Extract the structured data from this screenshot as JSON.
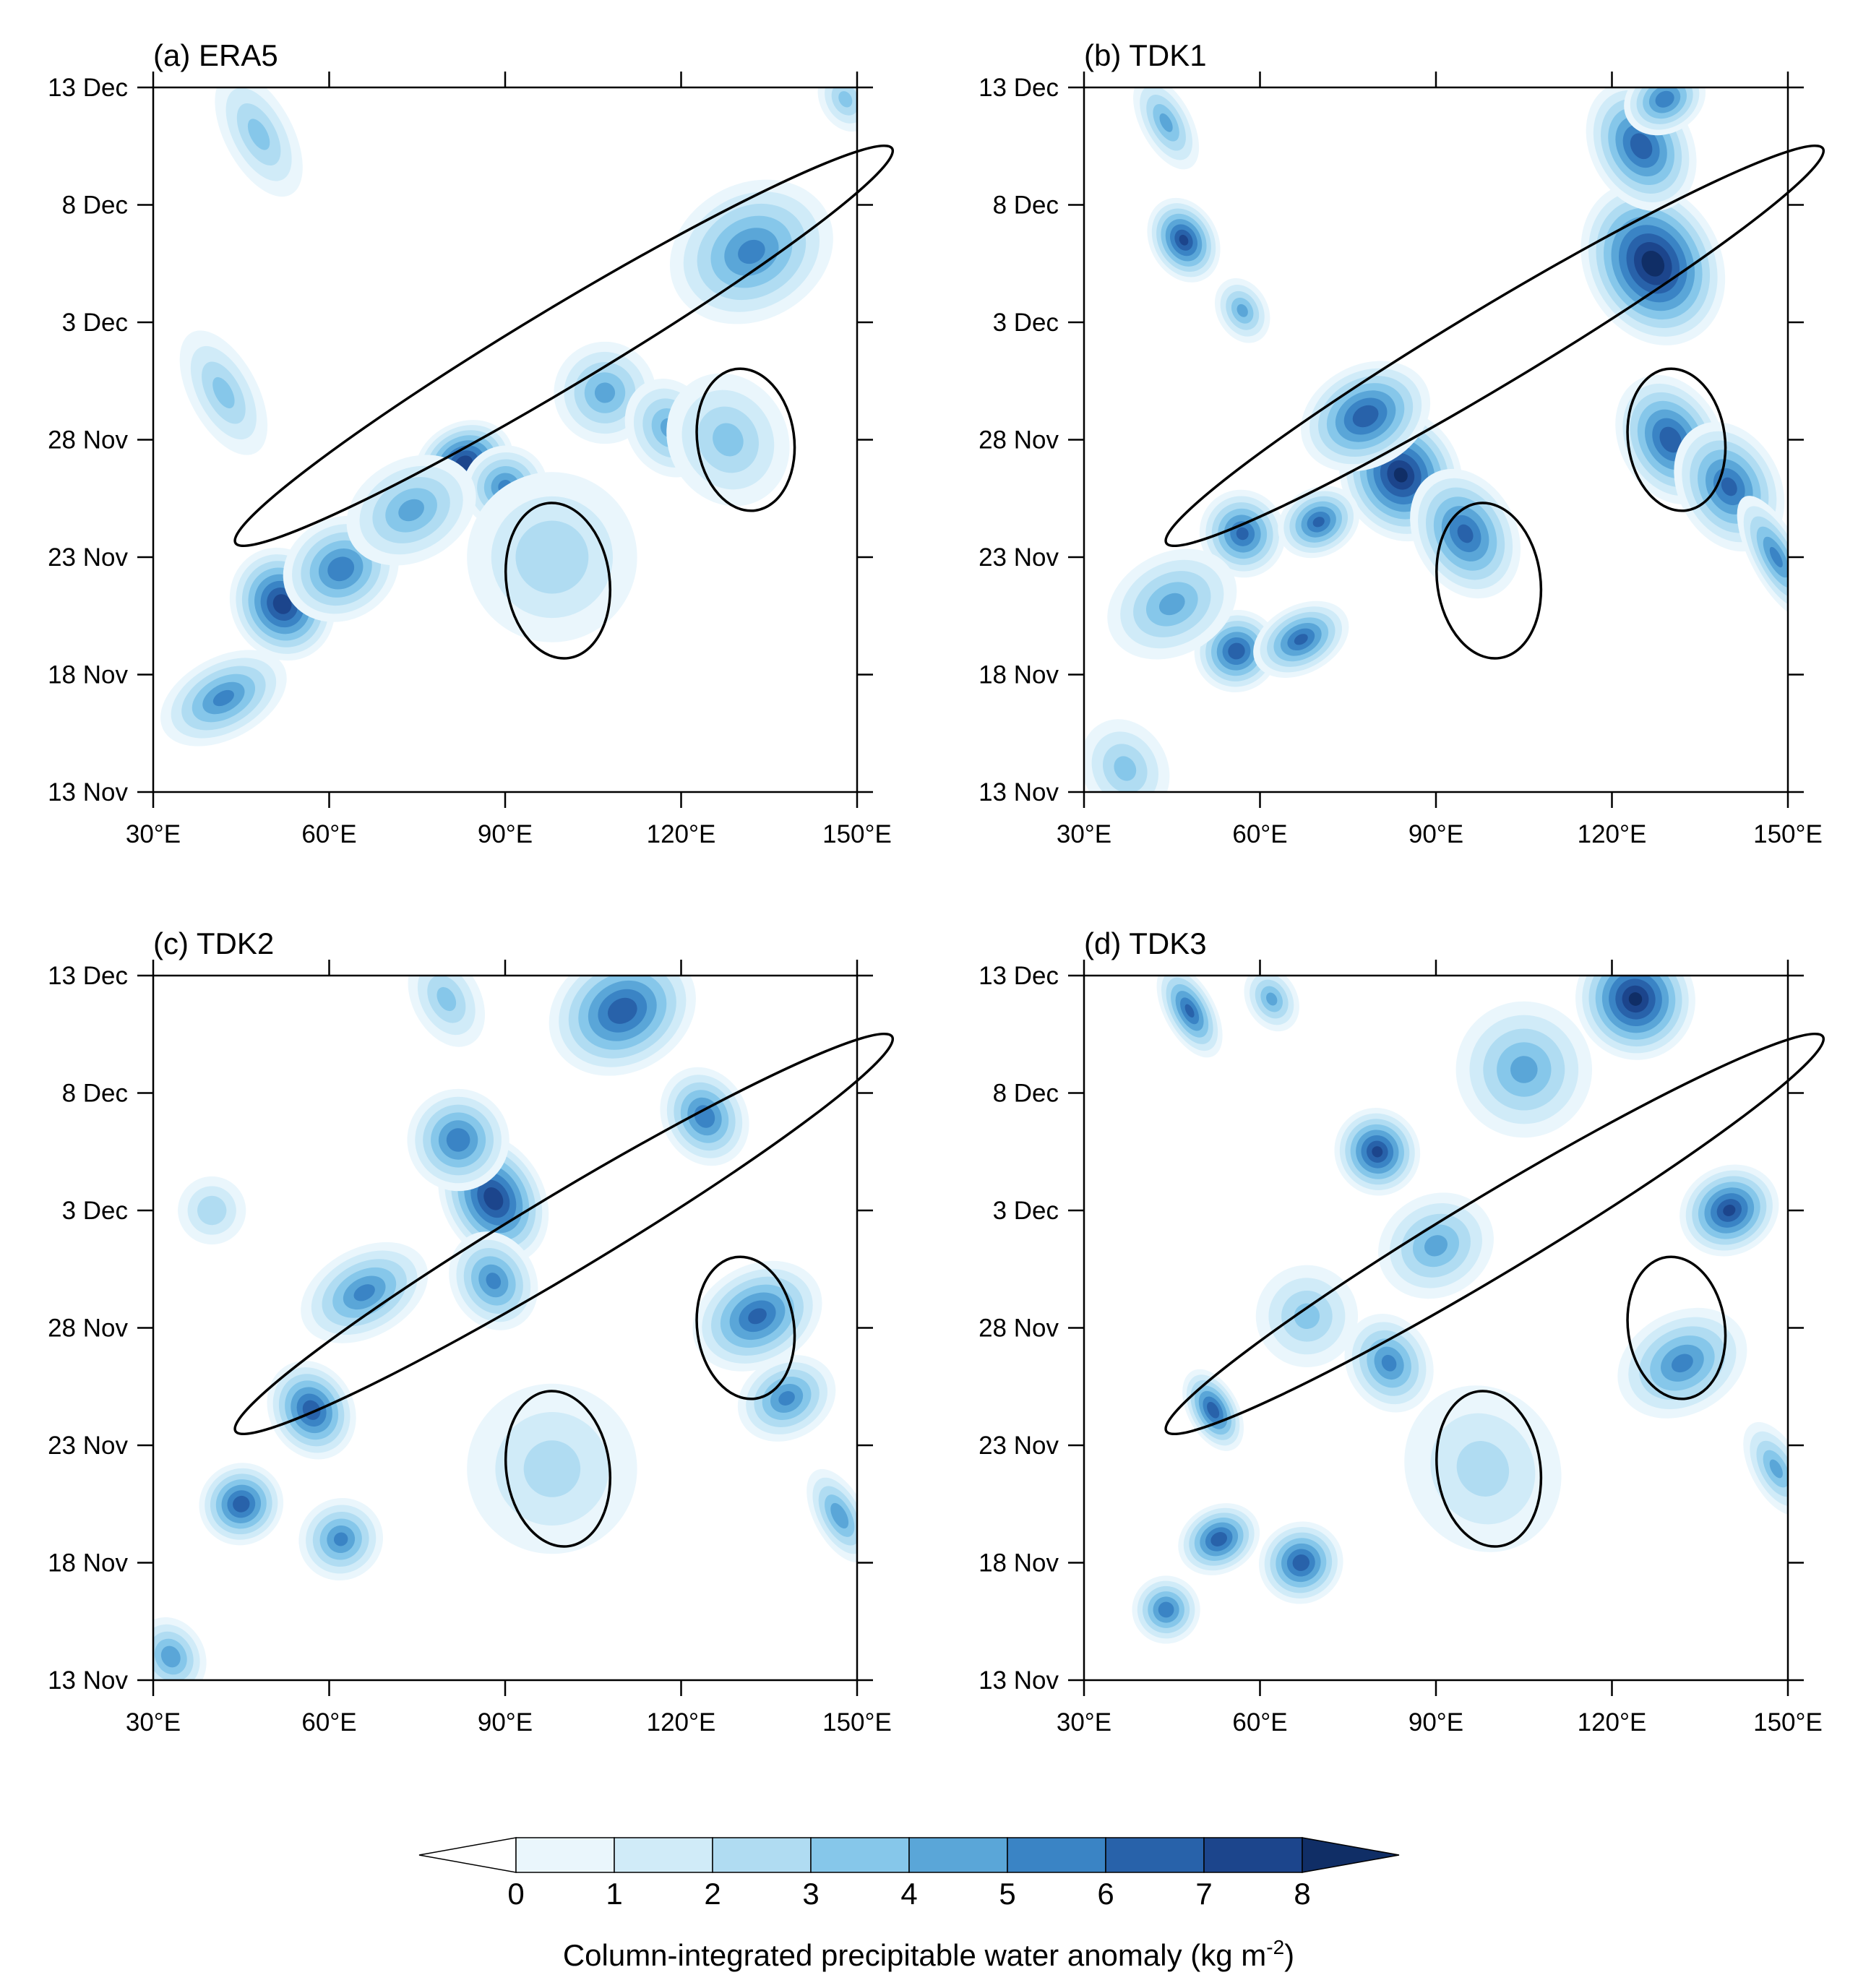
{
  "chart_data": [
    {
      "type": "heatmap",
      "title": "(a) ERA5",
      "x_ticks": [
        "30°E",
        "60°E",
        "90°E",
        "120°E",
        "150°E"
      ],
      "y_ticks": [
        "13 Nov",
        "18 Nov",
        "23 Nov",
        "28 Nov",
        "3 Dec",
        "8 Dec",
        "13 Dec"
      ],
      "xlim": [
        30,
        150
      ],
      "ylim": [
        "13 Nov",
        "13 Dec"
      ],
      "ellipses": [
        {
          "center_lon": 100,
          "center_date": "2 Dec",
          "semi_major_lon": 51,
          "semi_minor_days": 1.3,
          "tilt_deg": -31
        },
        {
          "center_lon": 99,
          "center_date": "22 Nov",
          "semi_major_lon": 16,
          "semi_minor_days": 3.5,
          "tilt_deg": -8
        },
        {
          "center_lon": 131,
          "center_date": "28 Nov",
          "semi_major_lon": 15,
          "semi_minor_days": 3.2,
          "tilt_deg": -8
        }
      ],
      "blobs": [
        {
          "lon": 52,
          "date": "21 Nov",
          "value": 7.5,
          "spread_lon": 6,
          "spread_days": 1.7
        },
        {
          "lon": 62,
          "date": "22.5 Nov",
          "value": 5.5,
          "spread_lon": 7,
          "spread_days": 1.5
        },
        {
          "lon": 42,
          "date": "17 Nov",
          "value": 5,
          "spread_lon": 8,
          "spread_days": 1.2
        },
        {
          "lon": 83,
          "date": "27 Nov",
          "value": 7.5,
          "spread_lon": 6,
          "spread_days": 1.2
        },
        {
          "lon": 90,
          "date": "26 Nov",
          "value": 5,
          "spread_lon": 5,
          "spread_days": 1.2
        },
        {
          "lon": 74,
          "date": "25 Nov",
          "value": 4,
          "spread_lon": 8,
          "spread_days": 1.5
        },
        {
          "lon": 107,
          "date": "30 Nov",
          "value": 4,
          "spread_lon": 6,
          "spread_days": 1.5
        },
        {
          "lon": 118,
          "date": "28.5 Nov",
          "value": 4,
          "spread_lon": 5,
          "spread_days": 1.5
        },
        {
          "lon": 132,
          "date": "6 Dec",
          "value": 5,
          "spread_lon": 10,
          "spread_days": 2
        },
        {
          "lon": 128,
          "date": "28 Nov",
          "value": 3,
          "spread_lon": 7,
          "spread_days": 2
        },
        {
          "lon": 98,
          "date": "23 Nov",
          "value": 2.5,
          "spread_lon": 10,
          "spread_days": 2.5
        },
        {
          "lon": 48,
          "date": "11 Dec",
          "value": 3,
          "spread_lon": 4,
          "spread_days": 2
        },
        {
          "lon": 42,
          "date": "30 Nov",
          "value": 3,
          "spread_lon": 4,
          "spread_days": 2
        },
        {
          "lon": 148,
          "date": "12.5 Dec",
          "value": 3,
          "spread_lon": 3,
          "spread_days": 1
        }
      ]
    },
    {
      "type": "heatmap",
      "title": "(b) TDK1",
      "x_ticks": [
        "30°E",
        "60°E",
        "90°E",
        "120°E",
        "150°E"
      ],
      "y_ticks": [
        "13 Nov",
        "18 Nov",
        "23 Nov",
        "28 Nov",
        "3 Dec",
        "8 Dec",
        "13 Dec"
      ],
      "xlim": [
        30,
        150
      ],
      "ylim": [
        "13 Nov",
        "13 Dec"
      ],
      "ellipses": [
        {
          "center_lon": 100,
          "center_date": "2 Dec",
          "semi_major_lon": 51,
          "semi_minor_days": 1.3,
          "tilt_deg": -31
        },
        {
          "center_lon": 99,
          "center_date": "22 Nov",
          "semi_major_lon": 16,
          "semi_minor_days": 3.5,
          "tilt_deg": -8
        },
        {
          "center_lon": 131,
          "center_date": "28 Nov",
          "semi_major_lon": 15,
          "semi_minor_days": 3.2,
          "tilt_deg": -8
        }
      ],
      "blobs": [
        {
          "lon": 84,
          "date": "26.5 Nov",
          "value": 8,
          "spread_lon": 7,
          "spread_days": 2
        },
        {
          "lon": 78,
          "date": "29 Nov",
          "value": 6.5,
          "spread_lon": 8,
          "spread_days": 1.5
        },
        {
          "lon": 57,
          "date": "24 Nov",
          "value": 6,
          "spread_lon": 5,
          "spread_days": 1.3
        },
        {
          "lon": 70,
          "date": "24.5 Nov",
          "value": 6,
          "spread_lon": 5,
          "spread_days": 1
        },
        {
          "lon": 95,
          "date": "24 Nov",
          "value": 6,
          "spread_lon": 6,
          "spread_days": 2
        },
        {
          "lon": 127,
          "date": "5.5 Dec",
          "value": 8.5,
          "spread_lon": 8,
          "spread_days": 2.5
        },
        {
          "lon": 125,
          "date": "10.5 Dec",
          "value": 6.5,
          "spread_lon": 6,
          "spread_days": 2
        },
        {
          "lon": 129,
          "date": "12.5 Dec",
          "value": 5.5,
          "spread_lon": 5,
          "spread_days": 1
        },
        {
          "lon": 130,
          "date": "28 Nov",
          "value": 6.5,
          "spread_lon": 6,
          "spread_days": 2
        },
        {
          "lon": 140,
          "date": "26 Nov",
          "value": 6,
          "spread_lon": 6,
          "spread_days": 2
        },
        {
          "lon": 47,
          "date": "6.5 Dec",
          "value": 7,
          "spread_lon": 4,
          "spread_days": 1.3
        },
        {
          "lon": 56,
          "date": "19 Nov",
          "value": 6.5,
          "spread_lon": 5,
          "spread_days": 1.2
        },
        {
          "lon": 67,
          "date": "19.5 Nov",
          "value": 6,
          "spread_lon": 6,
          "spread_days": 1
        },
        {
          "lon": 45,
          "date": "21 Nov",
          "value": 4,
          "spread_lon": 8,
          "spread_days": 1.5
        },
        {
          "lon": 148,
          "date": "23 Nov",
          "value": 5,
          "spread_lon": 3,
          "spread_days": 2
        },
        {
          "lon": 57,
          "date": "3.5 Dec",
          "value": 4,
          "spread_lon": 3,
          "spread_days": 1
        },
        {
          "lon": 37,
          "date": "14 Nov",
          "value": 3,
          "spread_lon": 5,
          "spread_days": 1.5
        },
        {
          "lon": 44,
          "date": "11.5 Dec",
          "value": 4,
          "spread_lon": 3,
          "spread_days": 1.5
        }
      ]
    },
    {
      "type": "heatmap",
      "title": "(c) TDK2",
      "x_ticks": [
        "30°E",
        "60°E",
        "90°E",
        "120°E",
        "150°E"
      ],
      "y_ticks": [
        "13 Nov",
        "18 Nov",
        "23 Nov",
        "28 Nov",
        "3 Dec",
        "8 Dec",
        "13 Dec"
      ],
      "xlim": [
        30,
        150
      ],
      "ylim": [
        "13 Nov",
        "13 Dec"
      ],
      "ellipses": [
        {
          "center_lon": 100,
          "center_date": "2 Dec",
          "semi_major_lon": 51,
          "semi_minor_days": 1.3,
          "tilt_deg": -31
        },
        {
          "center_lon": 99,
          "center_date": "22 Nov",
          "semi_major_lon": 16,
          "semi_minor_days": 3.5,
          "tilt_deg": -8
        },
        {
          "center_lon": 131,
          "center_date": "28 Nov",
          "semi_major_lon": 15,
          "semi_minor_days": 3.2,
          "tilt_deg": -8
        }
      ],
      "blobs": [
        {
          "lon": 88,
          "date": "3.5 Dec",
          "value": 7.5,
          "spread_lon": 6,
          "spread_days": 2
        },
        {
          "lon": 82,
          "date": "6 Dec",
          "value": 5.5,
          "spread_lon": 6,
          "spread_days": 1.5
        },
        {
          "lon": 88,
          "date": "30 Nov",
          "value": 5,
          "spread_lon": 5,
          "spread_days": 1.5
        },
        {
          "lon": 110,
          "date": "11.5 Dec",
          "value": 6.5,
          "spread_lon": 9,
          "spread_days": 1.8
        },
        {
          "lon": 124,
          "date": "7 Dec",
          "value": 5.5,
          "spread_lon": 5,
          "spread_days": 1.5
        },
        {
          "lon": 133,
          "date": "28.5 Nov",
          "value": 6,
          "spread_lon": 8,
          "spread_days": 1.5
        },
        {
          "lon": 138,
          "date": "25 Nov",
          "value": 5,
          "spread_lon": 6,
          "spread_days": 1.2
        },
        {
          "lon": 57,
          "date": "24.5 Nov",
          "value": 6.5,
          "spread_lon": 5,
          "spread_days": 1.5
        },
        {
          "lon": 66,
          "date": "29.5 Nov",
          "value": 5,
          "spread_lon": 8,
          "spread_days": 1.3
        },
        {
          "lon": 45,
          "date": "20.5 Nov",
          "value": 6.5,
          "spread_lon": 5,
          "spread_days": 1.2
        },
        {
          "lon": 62,
          "date": "19 Nov",
          "value": 5,
          "spread_lon": 5,
          "spread_days": 1.2
        },
        {
          "lon": 33,
          "date": "14 Nov",
          "value": 4.5,
          "spread_lon": 4,
          "spread_days": 1.2
        },
        {
          "lon": 98,
          "date": "22 Nov",
          "value": 2,
          "spread_lon": 10,
          "spread_days": 2.5
        },
        {
          "lon": 147,
          "date": "20 Nov",
          "value": 4.5,
          "spread_lon": 3,
          "spread_days": 1.5
        },
        {
          "lon": 80,
          "date": "12 Dec",
          "value": 3,
          "spread_lon": 4,
          "spread_days": 1.5
        },
        {
          "lon": 40,
          "date": "3 Dec",
          "value": 2.5,
          "spread_lon": 4,
          "spread_days": 1
        }
      ]
    },
    {
      "type": "heatmap",
      "title": "(d) TDK3",
      "x_ticks": [
        "30°E",
        "60°E",
        "90°E",
        "120°E",
        "150°E"
      ],
      "y_ticks": [
        "13 Nov",
        "18 Nov",
        "23 Nov",
        "28 Nov",
        "3 Dec",
        "8 Dec",
        "13 Dec"
      ],
      "xlim": [
        30,
        150
      ],
      "ylim": [
        "13 Nov",
        "13 Dec"
      ],
      "ellipses": [
        {
          "center_lon": 100,
          "center_date": "2 Dec",
          "semi_major_lon": 51,
          "semi_minor_days": 1.3,
          "tilt_deg": -31
        },
        {
          "center_lon": 99,
          "center_date": "22 Nov",
          "semi_major_lon": 16,
          "semi_minor_days": 3.5,
          "tilt_deg": -8
        },
        {
          "center_lon": 131,
          "center_date": "28 Nov",
          "semi_major_lon": 15,
          "semi_minor_days": 3.2,
          "tilt_deg": -8
        }
      ],
      "blobs": [
        {
          "lon": 124,
          "date": "12 Dec",
          "value": 8,
          "spread_lon": 7,
          "spread_days": 1.8
        },
        {
          "lon": 140,
          "date": "3 Dec",
          "value": 7,
          "spread_lon": 6,
          "spread_days": 1.3
        },
        {
          "lon": 80,
          "date": "5.5 Dec",
          "value": 7,
          "spread_lon": 5,
          "spread_days": 1.3
        },
        {
          "lon": 52,
          "date": "24.5 Nov",
          "value": 6.5,
          "spread_lon": 3,
          "spread_days": 1.3
        },
        {
          "lon": 53,
          "date": "19 Nov",
          "value": 6.5,
          "spread_lon": 5,
          "spread_days": 1
        },
        {
          "lon": 67,
          "date": "18 Nov",
          "value": 6.5,
          "spread_lon": 5,
          "spread_days": 1.2
        },
        {
          "lon": 44,
          "date": "16 Nov",
          "value": 5.5,
          "spread_lon": 4,
          "spread_days": 1
        },
        {
          "lon": 48,
          "date": "11.5 Dec",
          "value": 6,
          "spread_lon": 3,
          "spread_days": 1.5
        },
        {
          "lon": 82,
          "date": "26.5 Nov",
          "value": 5,
          "spread_lon": 5,
          "spread_days": 1.5
        },
        {
          "lon": 132,
          "date": "26.5 Nov",
          "value": 5,
          "spread_lon": 8,
          "spread_days": 1.5
        },
        {
          "lon": 105,
          "date": "9 Dec",
          "value": 4,
          "spread_lon": 8,
          "spread_days": 2
        },
        {
          "lon": 90,
          "date": "1.5 Dec",
          "value": 4,
          "spread_lon": 7,
          "spread_days": 1.5
        },
        {
          "lon": 148,
          "date": "22 Nov",
          "value": 4,
          "spread_lon": 3,
          "spread_days": 1.5
        },
        {
          "lon": 98,
          "date": "22 Nov",
          "value": 2,
          "spread_lon": 9,
          "spread_days": 2.5
        },
        {
          "lon": 62,
          "date": "12 Dec",
          "value": 4,
          "spread_lon": 3,
          "spread_days": 1
        },
        {
          "lon": 68,
          "date": "28.5 Nov",
          "value": 3,
          "spread_lon": 6,
          "spread_days": 1.5
        }
      ]
    }
  ],
  "colorbar": {
    "levels": [
      "0",
      "1",
      "2",
      "3",
      "4",
      "5",
      "6",
      "7",
      "8"
    ],
    "colors": [
      "#ffffff",
      "#eaf6fc",
      "#d0ebf8",
      "#b0dcf2",
      "#86c7ea",
      "#5aa6d8",
      "#3a84c5",
      "#2862aa",
      "#1c458c",
      "#102e66"
    ],
    "label_main": "Column-integrated precipitable water anomaly (kg m",
    "label_exp": "-2",
    "label_close": ")"
  }
}
